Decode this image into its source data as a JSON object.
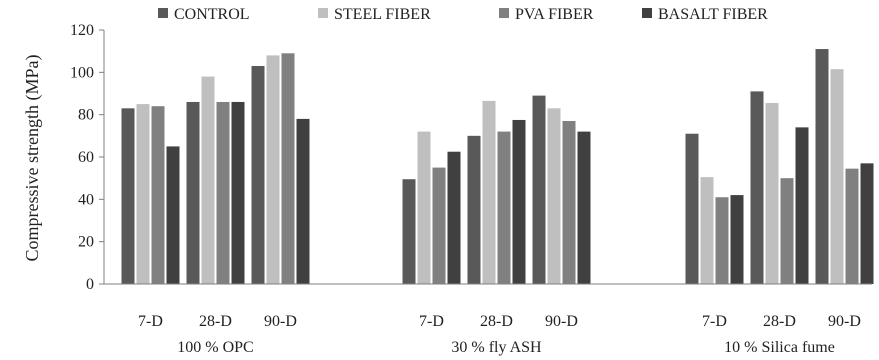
{
  "chart_data": {
    "type": "bar",
    "ylabel": "Compressive strength (MPa)",
    "xlabel": "",
    "ylim": [
      0,
      120
    ],
    "yticks": [
      0,
      20,
      40,
      60,
      80,
      100,
      120
    ],
    "grid": false,
    "legend_position": "top",
    "groups": [
      {
        "label": "100 % OPC",
        "categories": [
          "7-D",
          "28-D",
          "90-D"
        ]
      },
      {
        "label": "30 % fly ASH",
        "categories": [
          "7-D",
          "28-D",
          "90-D"
        ]
      },
      {
        "label": "10 % Silica fume",
        "categories": [
          "7-D",
          "28-D",
          "90-D"
        ]
      }
    ],
    "series": [
      {
        "name": "CONTROL",
        "color": "#595959",
        "values": [
          83,
          86,
          103,
          49.5,
          70,
          89,
          71,
          91,
          111
        ]
      },
      {
        "name": "STEEL FIBER",
        "color": "#bfbfbf",
        "values": [
          85,
          98,
          108,
          72,
          86.5,
          83,
          50.5,
          85.5,
          101.5
        ]
      },
      {
        "name": "PVA FIBER",
        "color": "#808080",
        "values": [
          84,
          86,
          109,
          55,
          72,
          77,
          41,
          50,
          54.5
        ]
      },
      {
        "name": "BASALT FIBER",
        "color": "#404040",
        "values": [
          65,
          86,
          78,
          62.5,
          77.5,
          72,
          42,
          74,
          57
        ]
      }
    ]
  }
}
